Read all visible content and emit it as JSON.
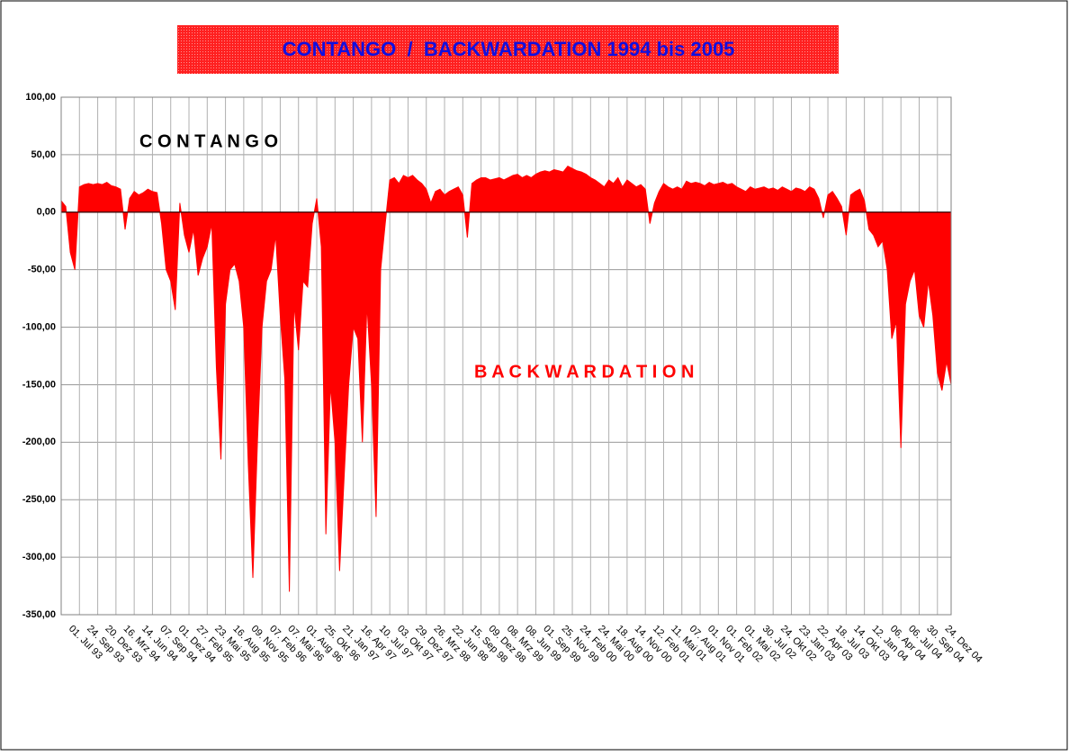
{
  "chart_data": {
    "type": "area",
    "title": "CONTANGO  /  BACKWARDATION 1994 bis 2005",
    "annotations": [
      "C O N T A N G O",
      "B A C K W A R D A T I O N"
    ],
    "color": "#ff0000",
    "grid": true,
    "ylim": [
      -350,
      100
    ],
    "yticks": [
      {
        "value": -350,
        "label": "-350,00"
      },
      {
        "value": -300,
        "label": "-300,00"
      },
      {
        "value": -250,
        "label": "-250,00"
      },
      {
        "value": -200,
        "label": "-200,00"
      },
      {
        "value": -150,
        "label": "-150,00"
      },
      {
        "value": -100,
        "label": "-100,00"
      },
      {
        "value": -50,
        "label": "-50,00"
      },
      {
        "value": 0,
        "label": "0,00"
      },
      {
        "value": 50,
        "label": "50,00"
      },
      {
        "value": 100,
        "label": "100,00"
      }
    ],
    "categories": [
      "01. Jul 93",
      null,
      null,
      null,
      "24. Sep 93",
      null,
      null,
      null,
      "20. Dez 93",
      null,
      null,
      null,
      "16. Mrz 94",
      null,
      null,
      null,
      "14. Jun 94",
      null,
      null,
      null,
      "07. Sep 94",
      null,
      null,
      null,
      "01. Dez 94",
      null,
      null,
      null,
      "27. Feb 95",
      null,
      null,
      null,
      "23. Mai 95",
      null,
      null,
      null,
      "16. Aug 95",
      null,
      null,
      null,
      "09. Nov 95",
      null,
      null,
      null,
      "07. Feb 96",
      null,
      null,
      null,
      "07. Mai 96",
      null,
      null,
      null,
      "01. Aug 96",
      null,
      null,
      null,
      "25. Okt 96",
      null,
      null,
      null,
      "21. Jan 97",
      null,
      null,
      null,
      "16. Apr 97",
      null,
      null,
      null,
      "10. Jul 97",
      null,
      null,
      null,
      "03. Okt 97",
      null,
      null,
      null,
      "29. Dez 97",
      null,
      null,
      null,
      "26. Mrz 98",
      null,
      null,
      null,
      "22. Jun 98",
      null,
      null,
      null,
      "15. Sep 98",
      null,
      null,
      null,
      "09. Dez 98",
      null,
      null,
      null,
      "08. Mrz 99",
      null,
      null,
      null,
      "08. Jun 99",
      null,
      null,
      null,
      "01. Sep 99",
      null,
      null,
      null,
      "25. Nov 99",
      null,
      null,
      null,
      "24. Feb 00",
      null,
      null,
      null,
      "24. Mai 00",
      null,
      null,
      null,
      "18. Aug 00",
      null,
      null,
      null,
      "14. Nov 00",
      null,
      null,
      null,
      "12. Feb 01",
      null,
      null,
      null,
      "11. Mai 01",
      null,
      null,
      null,
      "07. Aug 01",
      null,
      null,
      null,
      "01. Nov 01",
      null,
      null,
      null,
      "01. Feb 02",
      null,
      null,
      null,
      "01. Mai 02",
      null,
      null,
      null,
      "30. Jul 02",
      null,
      null,
      null,
      "24. Okt 02",
      null,
      null,
      null,
      "23. Jan 03",
      null,
      null,
      null,
      "22. Apr 03",
      null,
      null,
      null,
      "18. Jul 03",
      null,
      null,
      null,
      "14. Okt 03",
      null,
      null,
      null,
      "12. Jan 04",
      null,
      null,
      null,
      "06. Apr 04",
      null,
      null,
      null,
      "06. Jul 04",
      null,
      null,
      null,
      "30. Sep 04",
      null,
      null,
      null,
      "24. Dez 04",
      null,
      null,
      null
    ],
    "values": [
      10,
      5,
      -35,
      -50,
      22,
      24,
      25,
      24,
      25,
      24,
      26,
      23,
      22,
      20,
      -15,
      12,
      18,
      15,
      17,
      20,
      18,
      17,
      -10,
      -50,
      -60,
      -85,
      8,
      -20,
      -35,
      -15,
      -55,
      -40,
      -30,
      -10,
      -135,
      -215,
      -80,
      -50,
      -45,
      -60,
      -100,
      -220,
      -318,
      -200,
      -100,
      -60,
      -50,
      -20,
      -90,
      -145,
      -330,
      -80,
      -120,
      -60,
      -65,
      -10,
      12,
      -30,
      -280,
      -150,
      -200,
      -312,
      -230,
      -150,
      -100,
      -110,
      -200,
      -80,
      -150,
      -265,
      -50,
      -10,
      28,
      30,
      25,
      32,
      30,
      32,
      28,
      25,
      20,
      8,
      18,
      20,
      15,
      18,
      20,
      22,
      15,
      -22,
      25,
      28,
      30,
      30,
      28,
      29,
      30,
      28,
      30,
      32,
      33,
      30,
      32,
      30,
      33,
      35,
      36,
      35,
      37,
      36,
      35,
      40,
      38,
      36,
      35,
      33,
      30,
      28,
      25,
      22,
      28,
      25,
      30,
      22,
      28,
      25,
      22,
      24,
      20,
      -10,
      8,
      18,
      25,
      22,
      20,
      22,
      20,
      27,
      25,
      26,
      25,
      23,
      26,
      24,
      25,
      26,
      24,
      25,
      22,
      20,
      18,
      22,
      20,
      21,
      22,
      20,
      21,
      19,
      22,
      20,
      18,
      21,
      20,
      18,
      22,
      20,
      12,
      -5,
      15,
      18,
      12,
      5,
      -20,
      15,
      18,
      20,
      10,
      -15,
      -20,
      -30,
      -25,
      -50,
      -110,
      -95,
      -205,
      -80,
      -60,
      -50,
      -90,
      -100,
      -60,
      -90,
      -140,
      -155,
      -130,
      -150
    ]
  }
}
